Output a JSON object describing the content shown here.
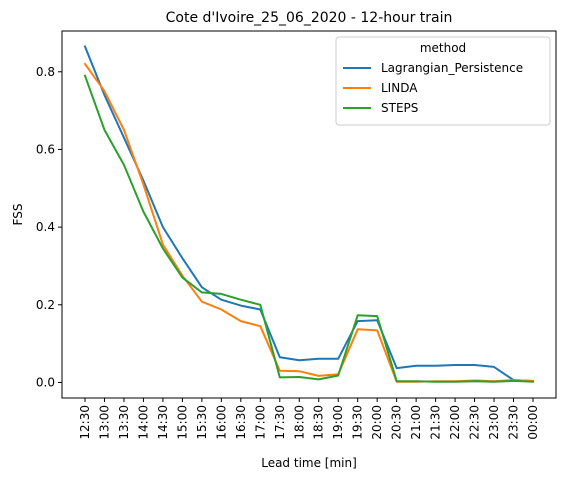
{
  "chart_data": {
    "type": "line",
    "title": "Cote d'Ivoire_25_06_2020 - 12-hour train",
    "xlabel": "Lead time [min]",
    "ylabel": "FSS",
    "categories": [
      "12:30",
      "13:00",
      "13:30",
      "14:00",
      "14:30",
      "15:00",
      "15:30",
      "16:00",
      "16:30",
      "17:00",
      "17:30",
      "18:00",
      "18:30",
      "19:00",
      "19:30",
      "20:00",
      "20:30",
      "21:00",
      "21:30",
      "22:00",
      "22:30",
      "23:00",
      "23:30",
      "00:00"
    ],
    "ylim": [
      -0.04,
      0.905
    ],
    "yticks": [
      0.0,
      0.2,
      0.4,
      0.6,
      0.8
    ],
    "ytick_labels": [
      "0.0",
      "0.2",
      "0.4",
      "0.6",
      "0.8"
    ],
    "grid": false,
    "legend": {
      "title": "method",
      "placement": "top-right"
    },
    "series": [
      {
        "name": "Lagrangian_Persistence",
        "color": "#1f77b4",
        "values": [
          0.865,
          0.74,
          0.63,
          0.52,
          0.4,
          0.32,
          0.245,
          0.213,
          0.198,
          0.188,
          0.065,
          0.057,
          0.061,
          0.061,
          0.158,
          0.16,
          0.037,
          0.043,
          0.043,
          0.045,
          0.045,
          0.04,
          0.006,
          0.004
        ]
      },
      {
        "name": "LINDA",
        "color": "#ff7f0e",
        "values": [
          0.82,
          0.75,
          0.65,
          0.51,
          0.355,
          0.275,
          0.208,
          0.188,
          0.158,
          0.145,
          0.03,
          0.029,
          0.017,
          0.021,
          0.137,
          0.134,
          0.002,
          0.002,
          0.003,
          0.003,
          0.005,
          0.003,
          0.006,
          0.004
        ]
      },
      {
        "name": "STEPS",
        "color": "#2ca02c",
        "values": [
          0.79,
          0.65,
          0.56,
          0.44,
          0.345,
          0.27,
          0.232,
          0.228,
          0.213,
          0.2,
          0.013,
          0.014,
          0.008,
          0.018,
          0.173,
          0.171,
          0.003,
          0.003,
          0.002,
          0.002,
          0.003,
          0.002,
          0.004,
          0.002
        ]
      }
    ]
  }
}
